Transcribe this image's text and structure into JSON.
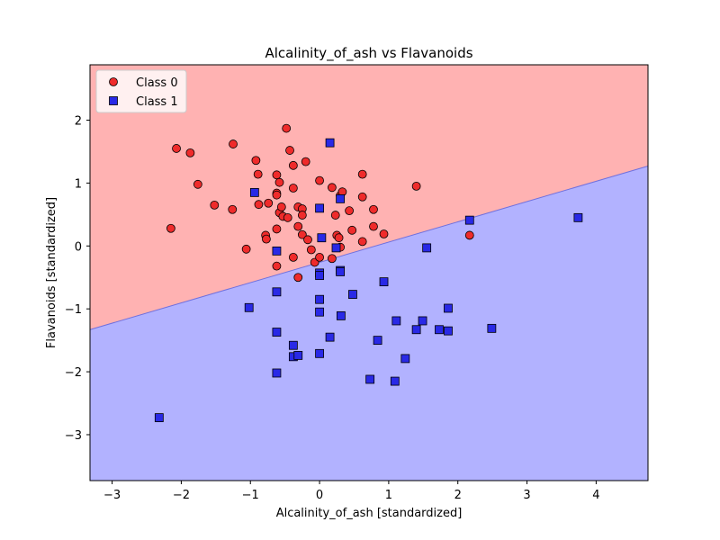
{
  "colors": {
    "class0_region": "#ffb2b2",
    "class1_region": "#b2b2ff",
    "class0_marker": "#ef2b2b",
    "class1_marker": "#2929e6",
    "boundary": "#7070dd"
  },
  "chart_data": {
    "type": "scatter",
    "title": "Alcalinity_of_ash vs Flavanoids",
    "xlabel": "Alcalinity_of_ash [standardized]",
    "ylabel": "Flavanoids [standardized]",
    "xlim": [
      -3.32,
      4.75
    ],
    "ylim": [
      -3.73,
      2.88
    ],
    "x_ticks": [
      -3,
      -2,
      -1,
      0,
      1,
      2,
      3,
      4
    ],
    "y_ticks": [
      -3,
      -2,
      -1,
      0,
      1,
      2
    ],
    "x_tick_labels": [
      "−3",
      "−2",
      "−1",
      "0",
      "1",
      "2",
      "3",
      "4"
    ],
    "y_tick_labels": [
      "−3",
      "−2",
      "−1",
      "0",
      "1",
      "2"
    ],
    "grid": false,
    "legend_position": "top-left",
    "decision_boundary": {
      "x": [
        -3.32,
        4.75
      ],
      "y": [
        -1.33,
        1.27
      ]
    },
    "series": [
      {
        "name": "Class 0",
        "marker": "circle",
        "points": [
          [
            -2.15,
            0.28
          ],
          [
            -2.07,
            1.55
          ],
          [
            -1.87,
            1.48
          ],
          [
            -1.76,
            0.98
          ],
          [
            -1.52,
            0.65
          ],
          [
            -1.26,
            0.58
          ],
          [
            -1.25,
            1.62
          ],
          [
            -1.06,
            -0.05
          ],
          [
            -0.92,
            1.36
          ],
          [
            -0.89,
            1.14
          ],
          [
            -0.88,
            0.66
          ],
          [
            -0.78,
            0.17
          ],
          [
            -0.77,
            0.11
          ],
          [
            -0.74,
            0.68
          ],
          [
            -0.62,
            1.13
          ],
          [
            -0.62,
            0.84
          ],
          [
            -0.62,
            0.81
          ],
          [
            -0.62,
            0.27
          ],
          [
            -0.62,
            -0.32
          ],
          [
            -0.58,
            1.01
          ],
          [
            -0.58,
            0.53
          ],
          [
            -0.55,
            0.62
          ],
          [
            -0.53,
            0.47
          ],
          [
            -0.48,
            1.87
          ],
          [
            -0.46,
            0.45
          ],
          [
            -0.43,
            1.52
          ],
          [
            -0.38,
            1.28
          ],
          [
            -0.38,
            0.92
          ],
          [
            -0.38,
            -0.18
          ],
          [
            -0.31,
            0.62
          ],
          [
            -0.31,
            0.31
          ],
          [
            -0.31,
            -0.5
          ],
          [
            -0.25,
            0.59
          ],
          [
            -0.25,
            0.49
          ],
          [
            -0.25,
            0.18
          ],
          [
            -0.2,
            1.34
          ],
          [
            -0.17,
            0.1
          ],
          [
            -0.12,
            -0.06
          ],
          [
            -0.07,
            -0.26
          ],
          [
            0.0,
            1.04
          ],
          [
            0.0,
            -0.18
          ],
          [
            0.18,
            0.93
          ],
          [
            0.18,
            -0.2
          ],
          [
            0.23,
            0.49
          ],
          [
            0.25,
            0.17
          ],
          [
            0.28,
            0.13
          ],
          [
            0.3,
            0.8
          ],
          [
            0.3,
            -0.02
          ],
          [
            0.33,
            0.86
          ],
          [
            0.43,
            0.56
          ],
          [
            0.47,
            0.25
          ],
          [
            0.62,
            1.14
          ],
          [
            0.62,
            0.78
          ],
          [
            0.62,
            0.07
          ],
          [
            0.78,
            0.58
          ],
          [
            0.78,
            0.31
          ],
          [
            0.93,
            0.19
          ],
          [
            1.4,
            0.95
          ],
          [
            2.17,
            0.17
          ]
        ]
      },
      {
        "name": "Class 1",
        "marker": "square",
        "points": [
          [
            -2.32,
            -2.73
          ],
          [
            -1.02,
            -0.98
          ],
          [
            -0.94,
            0.85
          ],
          [
            -0.62,
            -0.08
          ],
          [
            -0.62,
            -0.73
          ],
          [
            -0.62,
            -1.37
          ],
          [
            -0.62,
            -2.02
          ],
          [
            -0.38,
            -1.58
          ],
          [
            -0.38,
            -1.76
          ],
          [
            -0.31,
            -1.74
          ],
          [
            0.0,
            0.6
          ],
          [
            0.0,
            -0.43
          ],
          [
            0.0,
            -0.47
          ],
          [
            0.0,
            -0.85
          ],
          [
            0.0,
            -1.05
          ],
          [
            0.0,
            -1.71
          ],
          [
            0.03,
            0.13
          ],
          [
            0.15,
            1.64
          ],
          [
            0.15,
            -1.45
          ],
          [
            0.24,
            -0.03
          ],
          [
            0.3,
            0.75
          ],
          [
            0.3,
            -0.39
          ],
          [
            0.3,
            -0.41
          ],
          [
            0.31,
            -1.11
          ],
          [
            0.48,
            -0.77
          ],
          [
            0.73,
            -2.12
          ],
          [
            0.84,
            -1.5
          ],
          [
            0.93,
            -0.57
          ],
          [
            1.09,
            -2.15
          ],
          [
            1.11,
            -1.19
          ],
          [
            1.24,
            -1.79
          ],
          [
            1.4,
            -1.33
          ],
          [
            1.49,
            -1.19
          ],
          [
            1.55,
            -0.03
          ],
          [
            1.73,
            -1.33
          ],
          [
            1.86,
            -0.99
          ],
          [
            1.86,
            -1.35
          ],
          [
            2.17,
            0.41
          ],
          [
            2.49,
            -1.31
          ],
          [
            3.74,
            0.45
          ]
        ]
      }
    ]
  }
}
